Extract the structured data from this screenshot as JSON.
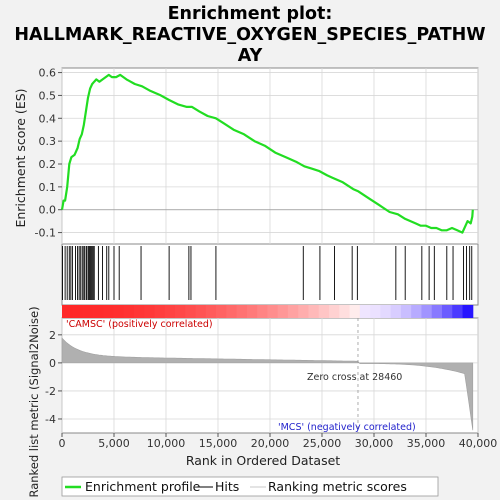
{
  "chart_data": {
    "type": "line",
    "title_lines": [
      "Enrichment plot:",
      "HALLMARK_REACTIVE_OXYGEN_SPECIES_PATHW",
      "AY"
    ],
    "colors": {
      "es_line": "#22dd22",
      "hits": "#000000",
      "metric_fill": "#b0b0b0",
      "zero_line": "#000000",
      "pos_label": "#cc0000",
      "neg_label": "#2222cc"
    },
    "upper_panel": {
      "ylabel": "Enrichment score (ES)",
      "ylim": [
        -0.15,
        0.62
      ],
      "yticks": [
        "-0.1",
        "0.0",
        "0.1",
        "0.2",
        "0.3",
        "0.4",
        "0.5",
        "0.6"
      ],
      "ytick_values": [
        -0.1,
        0.0,
        0.1,
        0.2,
        0.3,
        0.4,
        0.5,
        0.6
      ],
      "series": [
        {
          "name": "Enrichment profile",
          "x": [
            0,
            150,
            300,
            500,
            700,
            900,
            1200,
            1500,
            1700,
            1900,
            2100,
            2300,
            2500,
            2700,
            2900,
            3100,
            3300,
            3600,
            3900,
            4200,
            4500,
            4800,
            5200,
            5600,
            6200,
            7000,
            7700,
            8500,
            9500,
            10300,
            11200,
            12000,
            12500,
            13200,
            14000,
            14800,
            15500,
            16500,
            17500,
            18500,
            19500,
            20500,
            21500,
            22500,
            23300,
            24000,
            24700,
            25500,
            26000,
            27000,
            28000,
            28500,
            29500,
            30500,
            31500,
            32300,
            33000,
            34000,
            34500,
            35000,
            35500,
            36000,
            36500,
            37000,
            37500,
            38000,
            38500,
            39000,
            39300,
            39450,
            39500
          ],
          "y": [
            0.0,
            0.04,
            0.04,
            0.1,
            0.2,
            0.23,
            0.24,
            0.27,
            0.31,
            0.33,
            0.37,
            0.43,
            0.49,
            0.53,
            0.55,
            0.56,
            0.57,
            0.56,
            0.57,
            0.58,
            0.59,
            0.58,
            0.58,
            0.59,
            0.57,
            0.55,
            0.54,
            0.52,
            0.5,
            0.48,
            0.46,
            0.45,
            0.45,
            0.43,
            0.41,
            0.4,
            0.38,
            0.35,
            0.33,
            0.3,
            0.28,
            0.25,
            0.23,
            0.21,
            0.19,
            0.18,
            0.17,
            0.15,
            0.14,
            0.12,
            0.09,
            0.08,
            0.05,
            0.02,
            -0.01,
            -0.02,
            -0.04,
            -0.06,
            -0.07,
            -0.07,
            -0.08,
            -0.08,
            -0.09,
            -0.09,
            -0.08,
            -0.09,
            -0.1,
            -0.05,
            -0.06,
            -0.03,
            0.0
          ]
        }
      ]
    },
    "hits": [
      50,
      300,
      500,
      700,
      850,
      1000,
      1300,
      1500,
      1650,
      1800,
      1950,
      2100,
      2200,
      2350,
      2500,
      2600,
      2700,
      2800,
      2900,
      3000,
      3100,
      3500,
      3900,
      4300,
      4500,
      5000,
      5500,
      7600,
      10300,
      12200,
      12400,
      14800,
      23200,
      24800,
      26200,
      27900,
      28400,
      32100,
      33000,
      34600,
      35300,
      35800,
      37000,
      37600,
      38600,
      38900,
      39200,
      39400
    ],
    "rank_bar": {
      "pos_label": "'CAMSC' (positively correlated)",
      "neg_label": "'MCS' (negatively correlated)"
    },
    "lower_panel": {
      "ylabel": "Ranked list metric (Signal2Noise)",
      "ylim": [
        -5,
        3.2
      ],
      "yticks": [
        "2",
        "0",
        "-2",
        "-4"
      ],
      "ytick_values": [
        2,
        0,
        -2,
        -4
      ],
      "zero_cross_label": "Zero cross at 28460",
      "zero_cross": 28460
    },
    "xlabel": "Rank in Ordered Dataset",
    "xlim": [
      0,
      40000
    ],
    "xticks": [
      "0",
      "5,000",
      "10,000",
      "15,000",
      "20,000",
      "25,000",
      "30,000",
      "35,000",
      "40,000"
    ],
    "xtick_values": [
      0,
      5000,
      10000,
      15000,
      20000,
      25000,
      30000,
      35000,
      40000
    ],
    "n_genes": 39500,
    "legend": [
      {
        "label": "Enrichment profile",
        "kind": "line"
      },
      {
        "label": "Hits",
        "kind": "hit"
      },
      {
        "label": "Ranking metric scores",
        "kind": "metric"
      }
    ]
  }
}
